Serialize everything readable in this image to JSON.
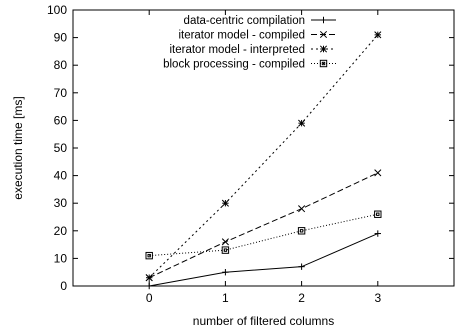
{
  "chart_data": {
    "type": "line",
    "title": "",
    "xlabel": "number of filtered columns",
    "ylabel": "execution time [ms]",
    "xlim": [
      -1,
      4
    ],
    "ylim": [
      0,
      100
    ],
    "x_ticks": [
      0,
      1,
      2,
      3
    ],
    "y_ticks": [
      0,
      10,
      20,
      30,
      40,
      50,
      60,
      70,
      80,
      90,
      100
    ],
    "grid": false,
    "legend_position": "top-right",
    "series": [
      {
        "name": "data-centric compilation",
        "x": [
          0,
          1,
          2,
          3
        ],
        "values": [
          0,
          5,
          7,
          19
        ],
        "style": "solid",
        "marker": "plus",
        "color": "#000000"
      },
      {
        "name": "iterator model - compiled",
        "x": [
          0,
          1,
          2,
          3
        ],
        "values": [
          3,
          16,
          28,
          41
        ],
        "style": "dashed",
        "marker": "cross",
        "color": "#000000"
      },
      {
        "name": "iterator model - interpreted",
        "x": [
          0,
          1,
          2,
          3
        ],
        "values": [
          3,
          30,
          59,
          91
        ],
        "style": "dotted",
        "marker": "star",
        "color": "#000000"
      },
      {
        "name": "block processing - compiled",
        "x": [
          0,
          1,
          2,
          3
        ],
        "values": [
          11,
          13,
          20,
          26
        ],
        "style": "dotted-fine",
        "marker": "square",
        "color": "#000000"
      }
    ]
  }
}
